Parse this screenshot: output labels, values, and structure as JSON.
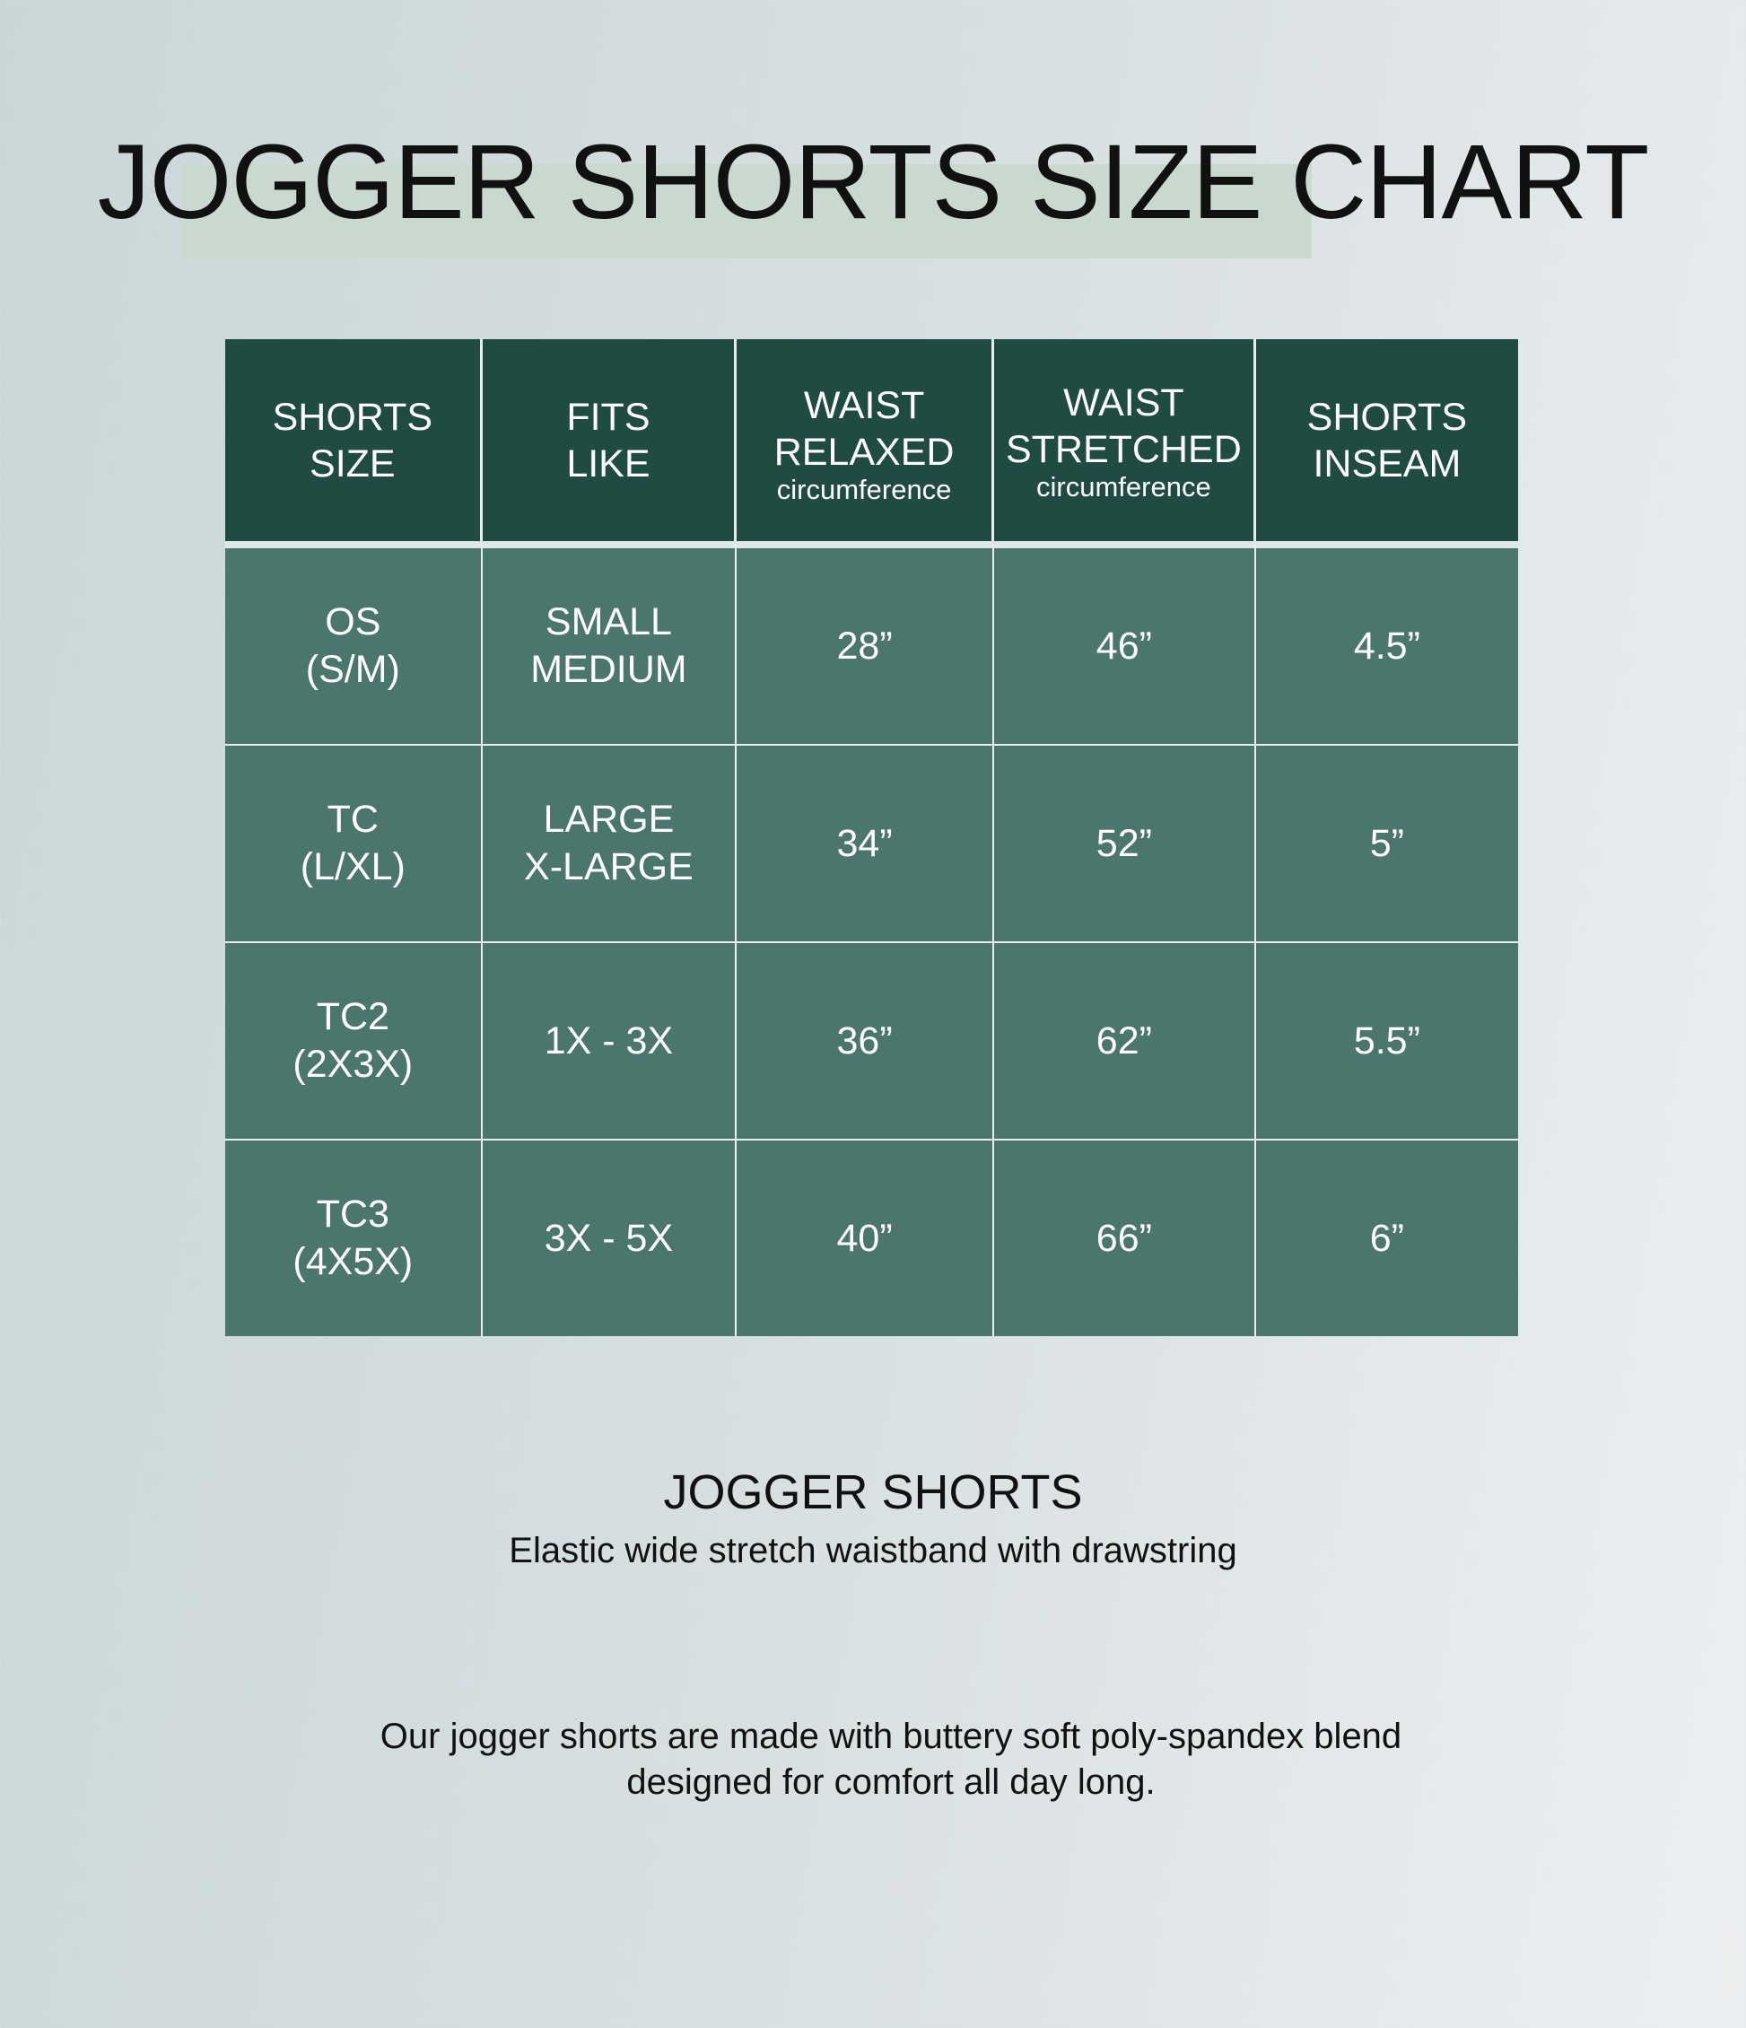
{
  "title": "JOGGER SHORTS SIZE CHART",
  "colors": {
    "header": "#1f4b43",
    "body": "#4b766d",
    "highlight": "#c9d9cf"
  },
  "table": {
    "headers": [
      {
        "lines": [
          "SHORTS",
          "SIZE"
        ],
        "sub": ""
      },
      {
        "lines": [
          "FITS",
          "LIKE"
        ],
        "sub": ""
      },
      {
        "lines": [
          "WAIST",
          "RELAXED"
        ],
        "sub": "circumference"
      },
      {
        "lines": [
          "WAIST",
          "STRETCHED"
        ],
        "sub": "circumference"
      },
      {
        "lines": [
          "SHORTS",
          "INSEAM"
        ],
        "sub": ""
      }
    ],
    "rows": [
      {
        "size": [
          "OS",
          "(S/M)"
        ],
        "fits": [
          "SMALL",
          "MEDIUM"
        ],
        "relaxed": "28”",
        "stretched": "46”",
        "inseam": "4.5”"
      },
      {
        "size": [
          "TC",
          "(L/XL)"
        ],
        "fits": [
          "LARGE",
          "X-LARGE"
        ],
        "relaxed": "34”",
        "stretched": "52”",
        "inseam": "5”"
      },
      {
        "size": [
          "TC2",
          "(2X3X)"
        ],
        "fits": [
          "1X - 3X"
        ],
        "relaxed": "36”",
        "stretched": "62”",
        "inseam": "5.5”"
      },
      {
        "size": [
          "TC3",
          "(4X5X)"
        ],
        "fits": [
          "3X - 5X"
        ],
        "relaxed": "40”",
        "stretched": "66”",
        "inseam": "6”"
      }
    ]
  },
  "product": {
    "name": "JOGGER SHORTS",
    "subtitle": "Elastic wide stretch waistband with drawstring",
    "description": [
      "Our jogger shorts are made with buttery soft poly-spandex blend",
      "designed for comfort all day long."
    ]
  }
}
